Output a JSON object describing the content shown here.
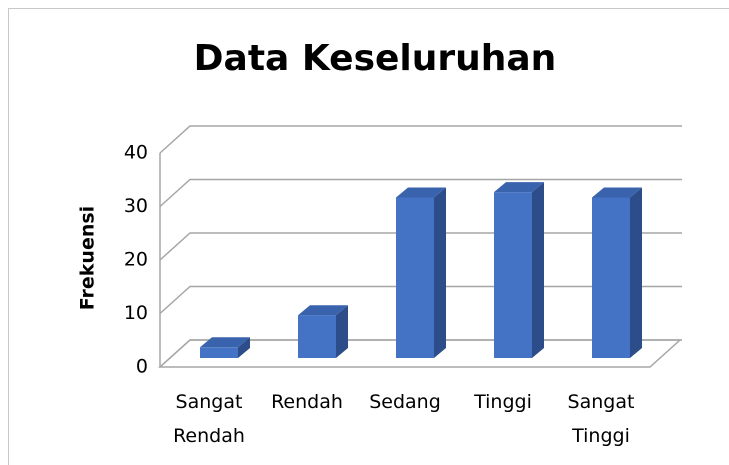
{
  "chart_data": {
    "type": "bar3d",
    "title": "Data Keseluruhan",
    "y_label": "Frekuensi",
    "categories": [
      "Sangat Rendah",
      "Rendah",
      "Sedang",
      "Tinggi",
      "Sangat Tinggi"
    ],
    "values": [
      2,
      8,
      30,
      31,
      30
    ],
    "color": "#4472c4",
    "ylim": [
      0,
      40
    ],
    "yticks": [
      0,
      10,
      20,
      30,
      40
    ],
    "grid": true
  }
}
